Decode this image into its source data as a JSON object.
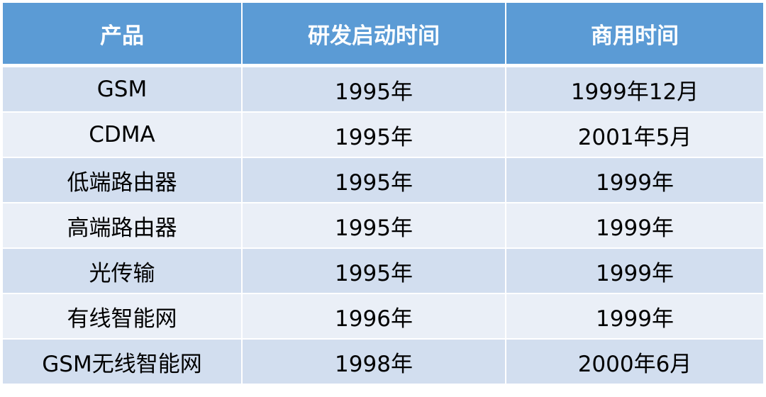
{
  "headers": [
    "产品",
    "研发启动时间",
    "商用时间"
  ],
  "rows": [
    [
      "GSM",
      "1995年",
      "1999年12月"
    ],
    [
      "CDMA",
      "1995年",
      "2001年5月"
    ],
    [
      "低端路由器",
      "1995年",
      "1999年"
    ],
    [
      "高端路由器",
      "1995年",
      "1999年"
    ],
    [
      "光传输",
      "1995年",
      "1999年"
    ],
    [
      "有线智能网",
      "1996年",
      "1999年"
    ],
    [
      "GSM无线智能网",
      "1998年",
      "2000年6月"
    ]
  ],
  "colors": {
    "header": "#5b9bd5",
    "row_odd": "#d2deef",
    "row_even": "#eaeff7"
  }
}
